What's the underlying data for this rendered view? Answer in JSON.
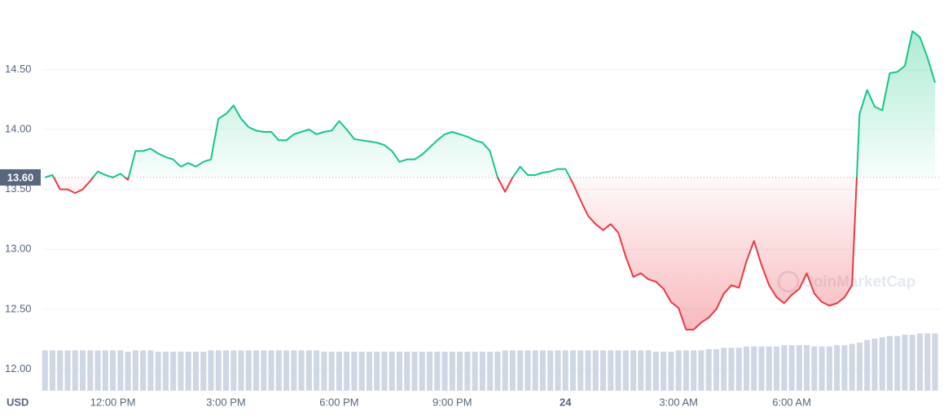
{
  "chart_data": {
    "type": "area",
    "axis_label": "USD",
    "watermark": "CoinMarketCap",
    "x": [
      10.2,
      10.4,
      10.6,
      10.8,
      11,
      11.2,
      11.4,
      11.6,
      11.8,
      12,
      12.2,
      12.4,
      12.6,
      12.8,
      13,
      13.2,
      13.4,
      13.6,
      13.8,
      14,
      14.2,
      14.4,
      14.6,
      14.8,
      15,
      15.2,
      15.4,
      15.6,
      15.8,
      16,
      16.2,
      16.4,
      16.6,
      16.8,
      17,
      17.2,
      17.4,
      17.6,
      17.8,
      18,
      18.2,
      18.4,
      18.6,
      18.8,
      19,
      19.2,
      19.4,
      19.6,
      19.8,
      20,
      20.2,
      20.4,
      20.6,
      20.8,
      21,
      21.2,
      21.4,
      21.6,
      21.8,
      22,
      22.2,
      22.4,
      22.6,
      22.8,
      23,
      23.2,
      23.4,
      23.6,
      23.8,
      24,
      24.2,
      24.4,
      24.6,
      24.8,
      25,
      25.2,
      25.4,
      25.6,
      25.8,
      26,
      26.2,
      26.4,
      26.6,
      26.8,
      27,
      27.2,
      27.4,
      27.6,
      27.8,
      28,
      28.2,
      28.4,
      28.6,
      28.8,
      29,
      29.2,
      29.4,
      29.6,
      29.8,
      30,
      30.2,
      30.4,
      30.6,
      30.8,
      31,
      31.2,
      31.4,
      31.6,
      31.8,
      32,
      32.2,
      32.4,
      32.6,
      32.8,
      33,
      33.2,
      33.4,
      33.6,
      33.8
    ],
    "series": [
      {
        "color_up": "#16c784",
        "color_down": "#ea3943",
        "values": [
          13.6,
          13.62,
          13.5,
          13.5,
          13.47,
          13.5,
          13.57,
          13.65,
          13.62,
          13.6,
          13.63,
          13.58,
          13.82,
          13.82,
          13.84,
          13.8,
          13.77,
          13.75,
          13.69,
          13.72,
          13.69,
          13.73,
          13.75,
          14.09,
          14.13,
          14.2,
          14.09,
          14.02,
          13.99,
          13.98,
          13.98,
          13.91,
          13.91,
          13.96,
          13.98,
          14.0,
          13.96,
          13.98,
          13.99,
          14.07,
          14.0,
          13.92,
          13.91,
          13.9,
          13.89,
          13.87,
          13.82,
          13.73,
          13.75,
          13.75,
          13.79,
          13.85,
          13.91,
          13.96,
          13.98,
          13.96,
          13.94,
          13.91,
          13.89,
          13.82,
          13.6,
          13.48,
          13.6,
          13.69,
          13.62,
          13.62,
          13.64,
          13.65,
          13.67,
          13.67,
          13.55,
          13.41,
          13.28,
          13.21,
          13.16,
          13.21,
          13.14,
          12.94,
          12.77,
          12.8,
          12.75,
          12.73,
          12.67,
          12.56,
          12.51,
          12.33,
          12.33,
          12.39,
          12.43,
          12.5,
          12.63,
          12.7,
          12.68,
          12.9,
          13.07,
          12.87,
          12.7,
          12.6,
          12.55,
          12.62,
          12.67,
          12.8,
          12.63,
          12.56,
          12.53,
          12.55,
          12.6,
          12.7,
          14.13,
          14.33,
          14.19,
          14.16,
          14.47,
          14.48,
          14.53,
          14.82,
          14.77,
          14.6,
          14.39
        ]
      }
    ],
    "volume": {
      "color": "#cfd6e4",
      "lim": [
        0,
        100
      ],
      "values": [
        31,
        31,
        31,
        31,
        31,
        31,
        31,
        31,
        31,
        31,
        31,
        30,
        31,
        31,
        31,
        30,
        30,
        30,
        30,
        30,
        30,
        30,
        31,
        31,
        31,
        31,
        31,
        31,
        31,
        31,
        31,
        31,
        31,
        31,
        31,
        31,
        31,
        30,
        30,
        30,
        30,
        30,
        30,
        30,
        30,
        30,
        30,
        30,
        30,
        30,
        30,
        30,
        30,
        30,
        30,
        30,
        30,
        30,
        30,
        30,
        30,
        31,
        31,
        31,
        31,
        31,
        31,
        31,
        31,
        31,
        31,
        31,
        31,
        31,
        31,
        31,
        31,
        31,
        31,
        31,
        31,
        30,
        30,
        30,
        31,
        31,
        31,
        31,
        32,
        32,
        33,
        33,
        33,
        34,
        34,
        34,
        34,
        34,
        35,
        35,
        35,
        35,
        34,
        34,
        34,
        35,
        35,
        36,
        37,
        39,
        40,
        41,
        42,
        42,
        43,
        43,
        44,
        44,
        44
      ]
    },
    "baseline": {
      "value": 13.6,
      "label": "13.60"
    },
    "xlim": [
      10.13,
      33.95
    ],
    "xticks": [
      {
        "value": 12,
        "label": "12:00 PM"
      },
      {
        "value": 15,
        "label": "3:00 PM"
      },
      {
        "value": 18,
        "label": "6:00 PM"
      },
      {
        "value": 21,
        "label": "9:00 PM"
      },
      24,
      {
        "value": 27,
        "label": "3:00 AM"
      },
      {
        "value": 30,
        "label": "6:00 AM"
      }
    ],
    "ylim": [
      11.82,
      15.08
    ],
    "yticks": [
      {
        "value": 12,
        "label": "12.00"
      },
      {
        "value": 12.5,
        "label": "12.50"
      },
      {
        "value": 13,
        "label": "13.00"
      },
      {
        "value": 13.5,
        "label": "13.50"
      },
      {
        "value": 14,
        "label": "14.00"
      },
      {
        "value": 14.5,
        "label": "14.50"
      }
    ],
    "grid": true
  }
}
